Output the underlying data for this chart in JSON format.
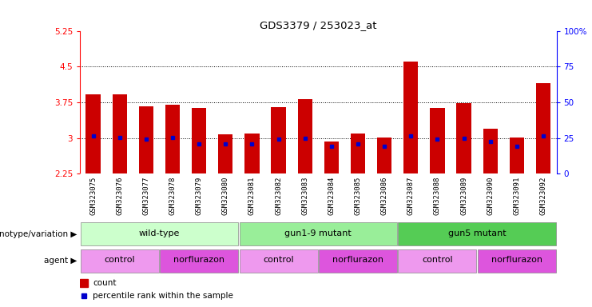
{
  "title": "GDS3379 / 253023_at",
  "samples": [
    "GSM323075",
    "GSM323076",
    "GSM323077",
    "GSM323078",
    "GSM323079",
    "GSM323080",
    "GSM323081",
    "GSM323082",
    "GSM323083",
    "GSM323084",
    "GSM323085",
    "GSM323086",
    "GSM323087",
    "GSM323088",
    "GSM323089",
    "GSM323090",
    "GSM323091",
    "GSM323092"
  ],
  "counts": [
    3.92,
    3.92,
    3.67,
    3.7,
    3.63,
    3.08,
    3.1,
    3.65,
    3.82,
    2.93,
    3.1,
    3.01,
    4.6,
    3.63,
    3.73,
    3.2,
    3.01,
    4.15
  ],
  "percentile_ranks": [
    3.05,
    3.02,
    2.97,
    3.02,
    2.87,
    2.87,
    2.87,
    2.97,
    2.99,
    2.82,
    2.87,
    2.83,
    3.05,
    2.97,
    3.0,
    2.93,
    2.83,
    3.05
  ],
  "ylim_left": [
    2.25,
    5.25
  ],
  "ylim_right": [
    0,
    100
  ],
  "yticks_left": [
    2.25,
    3.0,
    3.75,
    4.5,
    5.25
  ],
  "ytick_labels_left": [
    "2.25",
    "3",
    "3.75",
    "4.5",
    "5.25"
  ],
  "yticks_right": [
    0,
    25,
    50,
    75,
    100
  ],
  "ytick_labels_right": [
    "0",
    "25",
    "50",
    "75",
    "100%"
  ],
  "hlines": [
    3.0,
    3.75,
    4.5
  ],
  "bar_color": "#cc0000",
  "marker_color": "#0000cc",
  "bar_bottom": 2.25,
  "genotype_groups": [
    {
      "label": "wild-type",
      "start": 0,
      "end": 6,
      "color": "#ccffcc"
    },
    {
      "label": "gun1-9 mutant",
      "start": 6,
      "end": 12,
      "color": "#99ee99"
    },
    {
      "label": "gun5 mutant",
      "start": 12,
      "end": 18,
      "color": "#55cc55"
    }
  ],
  "agent_groups": [
    {
      "label": "control",
      "start": 0,
      "end": 3,
      "color": "#ee99ee"
    },
    {
      "label": "norflurazon",
      "start": 3,
      "end": 6,
      "color": "#dd55dd"
    },
    {
      "label": "control",
      "start": 6,
      "end": 9,
      "color": "#ee99ee"
    },
    {
      "label": "norflurazon",
      "start": 9,
      "end": 12,
      "color": "#dd55dd"
    },
    {
      "label": "control",
      "start": 12,
      "end": 15,
      "color": "#ee99ee"
    },
    {
      "label": "norflurazon",
      "start": 15,
      "end": 18,
      "color": "#dd55dd"
    }
  ],
  "legend_count_color": "#cc0000",
  "legend_rank_color": "#0000cc",
  "xlabel_genotype": "genotype/variation",
  "xlabel_agent": "agent",
  "xtick_bg": "#d8d8d8"
}
